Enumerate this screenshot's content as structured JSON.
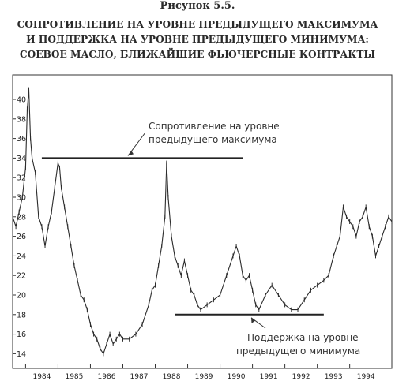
{
  "figure": {
    "label": "Рисунок 5.5.",
    "title_lines": [
      "СОПРОТИВЛЕНИЕ НА УРОВНЕ ПРЕДЫДУЩЕГО МАКСИМУМА",
      "И ПОДДЕРЖКА НА УРОВНЕ ПРЕДЫДУЩЕГО МИНИМУМА:",
      "СОЕВОЕ МАСЛО, БЛИЖАЙШИЕ ФЬЮЧЕРСНЫЕ КОНТРАКТЫ"
    ]
  },
  "chart_data": {
    "type": "line",
    "ylim": [
      12.5,
      42.5
    ],
    "y_ticks": [
      14,
      16,
      18,
      20,
      22,
      24,
      26,
      28,
      30,
      32,
      34,
      36,
      38,
      40
    ],
    "xlim": [
      1983.6,
      1995.3
    ],
    "x_ticks": [
      "1984",
      "1985",
      "1986",
      "1987",
      "1988",
      "1989",
      "1990",
      "1991",
      "1992",
      "1993",
      "1994"
    ],
    "grid": false,
    "series": [
      {
        "points": [
          [
            1983.6,
            28.0
          ],
          [
            1983.7,
            27.0
          ],
          [
            1983.8,
            28.5
          ],
          [
            1983.9,
            30.0
          ],
          [
            1984.0,
            33.0
          ],
          [
            1984.05,
            39.0
          ],
          [
            1984.1,
            41.0
          ],
          [
            1984.15,
            36.0
          ],
          [
            1984.2,
            34.0
          ],
          [
            1984.3,
            32.5
          ],
          [
            1984.4,
            28.0
          ],
          [
            1984.5,
            27.0
          ],
          [
            1984.6,
            25.0
          ],
          [
            1984.7,
            27.0
          ],
          [
            1984.8,
            28.5
          ],
          [
            1984.9,
            31.0
          ],
          [
            1985.0,
            33.5
          ],
          [
            1985.05,
            33.0
          ],
          [
            1985.1,
            31.0
          ],
          [
            1985.2,
            29.0
          ],
          [
            1985.3,
            27.0
          ],
          [
            1985.4,
            25.0
          ],
          [
            1985.5,
            23.0
          ],
          [
            1985.6,
            21.5
          ],
          [
            1985.7,
            20.0
          ],
          [
            1985.8,
            19.5
          ],
          [
            1985.9,
            18.5
          ],
          [
            1986.0,
            17.0
          ],
          [
            1986.1,
            16.0
          ],
          [
            1986.2,
            15.5
          ],
          [
            1986.3,
            14.5
          ],
          [
            1986.4,
            14.0
          ],
          [
            1986.5,
            15.0
          ],
          [
            1986.6,
            16.0
          ],
          [
            1986.7,
            15.0
          ],
          [
            1986.8,
            15.5
          ],
          [
            1986.9,
            16.0
          ],
          [
            1987.0,
            15.5
          ],
          [
            1987.2,
            15.5
          ],
          [
            1987.4,
            16.0
          ],
          [
            1987.6,
            17.0
          ],
          [
            1987.8,
            19.0
          ],
          [
            1987.9,
            20.5
          ],
          [
            1988.0,
            21.0
          ],
          [
            1988.1,
            23.0
          ],
          [
            1988.2,
            25.0
          ],
          [
            1988.3,
            28.0
          ],
          [
            1988.35,
            33.5
          ],
          [
            1988.4,
            30.0
          ],
          [
            1988.5,
            26.0
          ],
          [
            1988.6,
            24.0
          ],
          [
            1988.7,
            23.0
          ],
          [
            1988.8,
            22.0
          ],
          [
            1988.9,
            23.5
          ],
          [
            1989.0,
            22.0
          ],
          [
            1989.1,
            20.5
          ],
          [
            1989.2,
            20.0
          ],
          [
            1989.3,
            19.0
          ],
          [
            1989.4,
            18.5
          ],
          [
            1989.6,
            19.0
          ],
          [
            1989.8,
            19.5
          ],
          [
            1990.0,
            20.0
          ],
          [
            1990.2,
            22.0
          ],
          [
            1990.4,
            24.0
          ],
          [
            1990.5,
            25.0
          ],
          [
            1990.6,
            24.0
          ],
          [
            1990.7,
            22.0
          ],
          [
            1990.8,
            21.5
          ],
          [
            1990.9,
            22.0
          ],
          [
            1991.0,
            20.5
          ],
          [
            1991.1,
            19.0
          ],
          [
            1991.2,
            18.5
          ],
          [
            1991.4,
            20.0
          ],
          [
            1991.6,
            21.0
          ],
          [
            1991.8,
            20.0
          ],
          [
            1992.0,
            19.0
          ],
          [
            1992.2,
            18.5
          ],
          [
            1992.4,
            18.5
          ],
          [
            1992.6,
            19.5
          ],
          [
            1992.8,
            20.5
          ],
          [
            1993.0,
            21.0
          ],
          [
            1993.2,
            21.5
          ],
          [
            1993.35,
            22.0
          ],
          [
            1993.5,
            24.0
          ],
          [
            1993.6,
            25.0
          ],
          [
            1993.7,
            26.0
          ],
          [
            1993.8,
            29.0
          ],
          [
            1993.9,
            28.0
          ],
          [
            1994.0,
            27.5
          ],
          [
            1994.1,
            27.0
          ],
          [
            1994.2,
            26.0
          ],
          [
            1994.3,
            27.5
          ],
          [
            1994.4,
            28.0
          ],
          [
            1994.5,
            29.0
          ],
          [
            1994.6,
            27.0
          ],
          [
            1994.7,
            26.0
          ],
          [
            1994.8,
            24.0
          ],
          [
            1994.9,
            25.0
          ],
          [
            1995.0,
            26.0
          ],
          [
            1995.1,
            27.0
          ],
          [
            1995.2,
            28.0
          ],
          [
            1995.3,
            27.5
          ]
        ]
      }
    ],
    "resistance": {
      "value": 34.0,
      "x_start": 1984.5,
      "x_end": 1990.7
    },
    "support": {
      "value": 18.0,
      "x_start": 1988.6,
      "x_end": 1993.2
    },
    "annotations": [
      {
        "lines": [
          "Сопротивление на уровне",
          "предыдущего максимума"
        ],
        "target": "resistance"
      },
      {
        "lines": [
          "Поддержка на уровне",
          "предыдущего минимума"
        ],
        "target": "support"
      }
    ]
  }
}
